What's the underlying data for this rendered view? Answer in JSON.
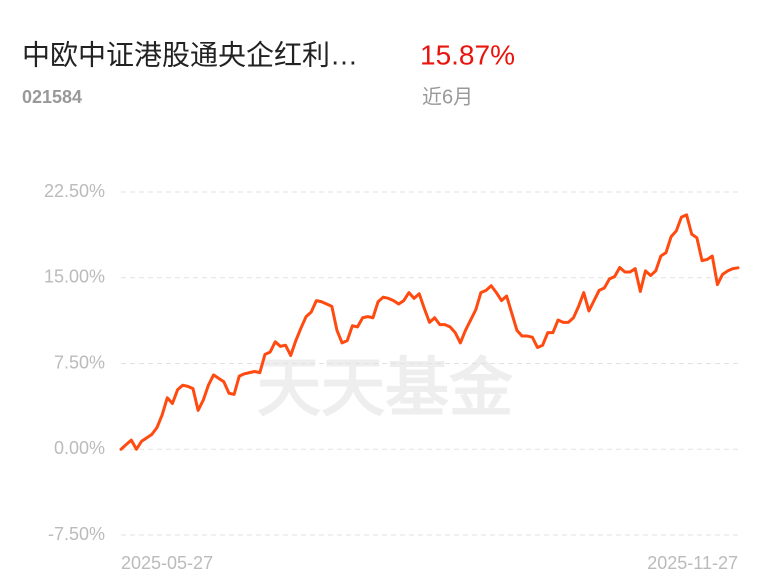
{
  "chart_data": {
    "type": "line",
    "title": "中欧中证港股通央企红利…",
    "subtitle": "021584",
    "period_return": "15.87%",
    "period": "近6月",
    "watermark": "天天基金",
    "categories": [
      "2025-05-27",
      null,
      null,
      null,
      null,
      null,
      null,
      null,
      null,
      null,
      null,
      null,
      null,
      null,
      null,
      null,
      null,
      null,
      null,
      null,
      null,
      null,
      null,
      null,
      null,
      null,
      null,
      null,
      null,
      null,
      null,
      null,
      null,
      null,
      null,
      null,
      null,
      null,
      null,
      null,
      null,
      null,
      null,
      null,
      null,
      null,
      null,
      null,
      null,
      null,
      null,
      null,
      null,
      null,
      null,
      null,
      null,
      null,
      null,
      null,
      null,
      null,
      null,
      null,
      null,
      null,
      null,
      null,
      null,
      null,
      null,
      null,
      null,
      null,
      null,
      null,
      null,
      null,
      null,
      null,
      null,
      null,
      null,
      null,
      null,
      null,
      null,
      null,
      null,
      null,
      null,
      null,
      null,
      null,
      null,
      null,
      null,
      null,
      null,
      null,
      null,
      null,
      null,
      null,
      null,
      null,
      null,
      null,
      null,
      null,
      null,
      null,
      null,
      null,
      null,
      null,
      null,
      null,
      null,
      null,
      "2025-11-27"
    ],
    "series": [
      {
        "color": "#ff4a10",
        "values": [
          0.0,
          0.4,
          0.8,
          0.0,
          0.7,
          1.0,
          1.3,
          1.9,
          3.0,
          4.5,
          4.0,
          5.2,
          5.6,
          5.5,
          5.3,
          3.4,
          4.3,
          5.6,
          6.5,
          6.2,
          5.9,
          4.9,
          4.8,
          6.4,
          6.6,
          6.7,
          6.8,
          6.7,
          8.3,
          8.5,
          9.4,
          9.0,
          9.1,
          8.2,
          9.5,
          10.6,
          11.6,
          12.0,
          13.0,
          12.9,
          12.7,
          12.5,
          10.4,
          9.3,
          9.5,
          10.8,
          10.7,
          11.5,
          11.6,
          11.5,
          12.9,
          13.3,
          13.2,
          13.0,
          12.7,
          13.0,
          13.7,
          13.2,
          13.6,
          12.3,
          11.1,
          11.5,
          10.9,
          10.9,
          10.7,
          10.2,
          9.3,
          10.4,
          11.3,
          12.2,
          13.7,
          13.9,
          14.3,
          13.7,
          13.0,
          13.4,
          11.9,
          10.4,
          9.9,
          9.9,
          9.8,
          8.9,
          9.1,
          10.2,
          10.2,
          11.3,
          11.1,
          11.1,
          11.5,
          12.5,
          13.7,
          12.1,
          13.0,
          13.9,
          14.1,
          14.9,
          15.1,
          15.9,
          15.5,
          15.5,
          15.8,
          13.8,
          15.6,
          15.2,
          15.6,
          16.9,
          17.2,
          18.6,
          19.1,
          20.3,
          20.5,
          18.8,
          18.5,
          16.5,
          16.6,
          16.9,
          14.4,
          15.3,
          15.6,
          15.8,
          15.87
        ]
      }
    ],
    "ylim": [
      -7.5,
      22.5
    ],
    "yticks": [
      {
        "value": 22.5,
        "label": "22.50%"
      },
      {
        "value": 15,
        "label": "15.00%"
      },
      {
        "value": 7.5,
        "label": "7.50%"
      },
      {
        "value": 0,
        "label": "0.00%"
      },
      {
        "value": -7.5,
        "label": "-7.50%"
      }
    ],
    "grid": true
  }
}
